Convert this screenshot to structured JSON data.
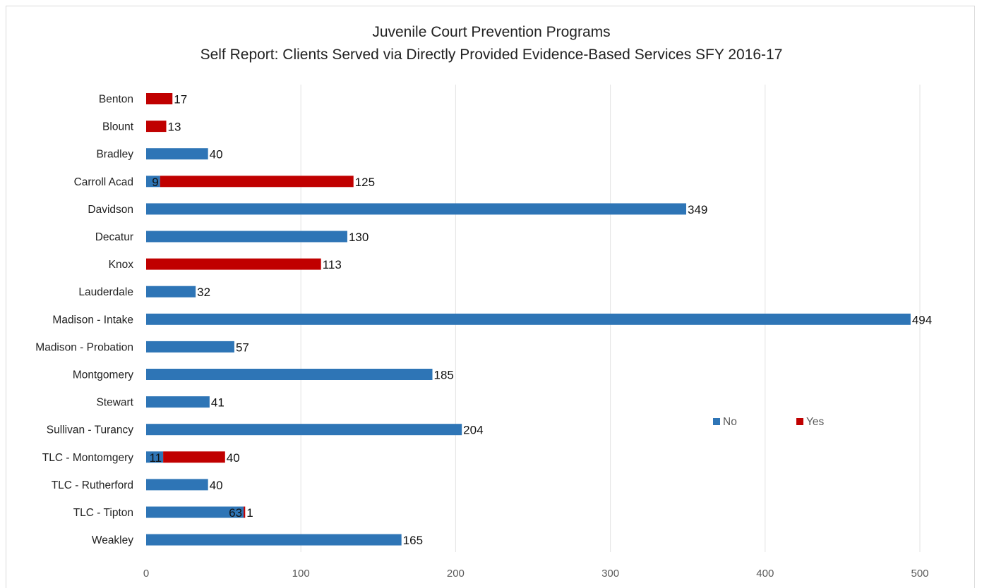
{
  "chart_data": {
    "type": "bar",
    "orientation": "horizontal",
    "stacked": true,
    "title": "Juvenile Court Prevention Programs",
    "subtitle": "Self Report: Clients Served via Directly Provided Evidence-Based Services SFY 2016-17",
    "categories": [
      "Benton",
      "Blount",
      "Bradley",
      "Carroll Acad",
      "Davidson",
      "Decatur",
      "Knox",
      "Lauderdale",
      "Madison - Intake",
      "Madison - Probation",
      "Montgomery",
      "Stewart",
      "Sullivan - Turancy",
      "TLC - Montomgery",
      "TLC - Rutherford",
      "TLC - Tipton",
      "Weakley"
    ],
    "series": [
      {
        "name": "No",
        "color": "#2e75b6",
        "values": [
          0,
          0,
          40,
          9,
          349,
          130,
          0,
          32,
          494,
          57,
          185,
          41,
          204,
          11,
          40,
          63,
          165
        ]
      },
      {
        "name": "Yes",
        "color": "#c00000",
        "values": [
          17,
          13,
          0,
          125,
          0,
          0,
          113,
          0,
          0,
          0,
          0,
          0,
          0,
          40,
          0,
          1,
          0
        ]
      }
    ],
    "data_labels": [
      [
        {
          "series": "Yes",
          "text": "17"
        }
      ],
      [
        {
          "series": "Yes",
          "text": "13"
        }
      ],
      [
        {
          "series": "No",
          "text": "40"
        }
      ],
      [
        {
          "series": "No",
          "text": "9"
        },
        {
          "series": "Yes",
          "text": "125"
        }
      ],
      [
        {
          "series": "No",
          "text": "349"
        }
      ],
      [
        {
          "series": "No",
          "text": "130"
        }
      ],
      [
        {
          "series": "Yes",
          "text": "113"
        }
      ],
      [
        {
          "series": "No",
          "text": "32"
        }
      ],
      [
        {
          "series": "No",
          "text": "494"
        }
      ],
      [
        {
          "series": "No",
          "text": "57"
        }
      ],
      [
        {
          "series": "No",
          "text": "185"
        }
      ],
      [
        {
          "series": "No",
          "text": "41"
        }
      ],
      [
        {
          "series": "No",
          "text": "204"
        }
      ],
      [
        {
          "series": "No",
          "text": "11"
        },
        {
          "series": "Yes",
          "text": "40"
        }
      ],
      [
        {
          "series": "No",
          "text": "40"
        }
      ],
      [
        {
          "series": "No",
          "text": "63"
        },
        {
          "series": "Yes",
          "text": "1"
        }
      ],
      [
        {
          "series": "No",
          "text": "165"
        }
      ]
    ],
    "xlim": [
      0,
      500
    ],
    "xticks": [
      0,
      100,
      200,
      300,
      400,
      500
    ],
    "grid": true,
    "legend": "right-inside"
  }
}
